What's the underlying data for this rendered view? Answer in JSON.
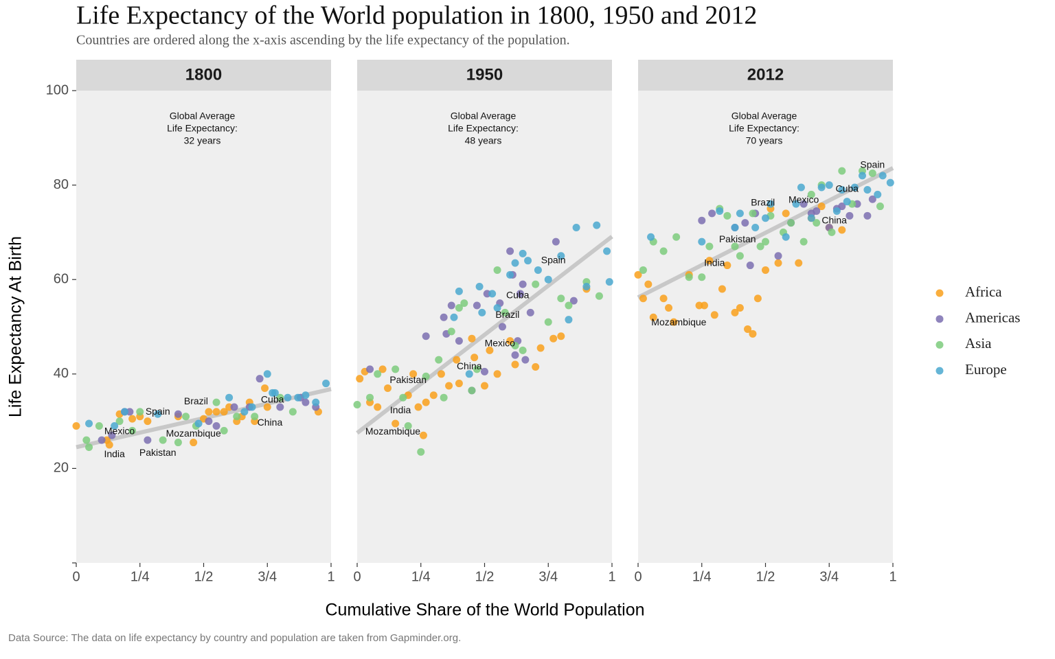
{
  "title": "Life Expectancy of the World population in 1800, 1950 and 2012",
  "subtitle": "Countries are ordered along the x-axis ascending by the life expectancy of the population.",
  "x_label": "Cumulative Share of the World Population",
  "y_label": "Life Expectancy At Birth",
  "caption": "Data Source: The data on life expectancy by country and population are taken from Gapminder.org.",
  "chart_data": [
    {
      "type": "scatter",
      "panel_title": "1800",
      "note": [
        "Global Average",
        "Life Expectancy:",
        "32 years"
      ],
      "xlim": [
        0,
        1
      ],
      "xticks": [
        0,
        {
          "value": 0.25,
          "label": "1/4"
        },
        {
          "value": 0.5,
          "label": "1/2"
        },
        {
          "value": 0.75,
          "label": "3/4"
        },
        1
      ],
      "ylim": [
        0,
        100
      ],
      "yticks": [
        20,
        40,
        60,
        80,
        100
      ],
      "trend": {
        "x": [
          0,
          1
        ],
        "y": [
          24.5,
          36.8
        ]
      },
      "series": [
        {
          "name": "Africa",
          "color": "#f9a01b",
          "x": [
            0.0,
            0.12,
            0.13,
            0.17,
            0.22,
            0.25,
            0.28,
            0.4,
            0.46,
            0.5,
            0.52,
            0.55,
            0.58,
            0.6,
            0.63,
            0.65,
            0.68,
            0.7,
            0.74,
            0.75,
            0.95
          ],
          "values": [
            29,
            26,
            25,
            31.5,
            30.5,
            31,
            30,
            31,
            25.5,
            30.5,
            32,
            32,
            32,
            33,
            30,
            31,
            34,
            30,
            37,
            33,
            32
          ]
        },
        {
          "name": "Americas",
          "color": "#7b6fb0",
          "x": [
            0.1,
            0.14,
            0.19,
            0.21,
            0.28,
            0.4,
            0.52,
            0.55,
            0.62,
            0.68,
            0.72,
            0.8,
            0.88,
            0.9,
            0.94
          ],
          "values": [
            26,
            27,
            32,
            32,
            26,
            31.5,
            30,
            29,
            33,
            33,
            39,
            33,
            35,
            34,
            33
          ]
        },
        {
          "name": "Asia",
          "color": "#7ccb7c",
          "x": [
            0.04,
            0.05,
            0.09,
            0.17,
            0.22,
            0.25,
            0.34,
            0.4,
            0.43,
            0.47,
            0.55,
            0.58,
            0.63,
            0.7,
            0.8,
            0.85
          ],
          "values": [
            26,
            24.5,
            29,
            30,
            28,
            32,
            26,
            25.5,
            31,
            29,
            34,
            28,
            31,
            31,
            35,
            32
          ]
        },
        {
          "name": "Europe",
          "color": "#4aa8cf",
          "x": [
            0.05,
            0.15,
            0.19,
            0.32,
            0.48,
            0.6,
            0.66,
            0.69,
            0.75,
            0.77,
            0.78,
            0.83,
            0.87,
            0.9,
            0.94,
            0.98
          ],
          "values": [
            29.5,
            29,
            32,
            31.5,
            29.5,
            35,
            32,
            33,
            40,
            36,
            36,
            35,
            35,
            35.5,
            34,
            38
          ]
        }
      ],
      "labels": [
        {
          "text": "Mexico",
          "x": 0.17,
          "y": 27.8
        },
        {
          "text": "India",
          "x": 0.15,
          "y": 22.9
        },
        {
          "text": "Pakistan",
          "x": 0.32,
          "y": 23.2
        },
        {
          "text": "Spain",
          "x": 0.32,
          "y": 31.9
        },
        {
          "text": "Brazil",
          "x": 0.47,
          "y": 34.1
        },
        {
          "text": "Mozambique",
          "x": 0.46,
          "y": 27.3
        },
        {
          "text": "Cuba",
          "x": 0.77,
          "y": 34.5
        },
        {
          "text": "China",
          "x": 0.76,
          "y": 29.6
        }
      ]
    },
    {
      "type": "scatter",
      "panel_title": "1950",
      "note": [
        "Global Average",
        "Life Expectancy:",
        "48 years"
      ],
      "xlim": [
        0,
        1
      ],
      "xticks": [
        0,
        {
          "value": 0.25,
          "label": "1/4"
        },
        {
          "value": 0.5,
          "label": "1/2"
        },
        {
          "value": 0.75,
          "label": "3/4"
        },
        1
      ],
      "ylim": [
        0,
        100
      ],
      "yticks": [
        20,
        40,
        60,
        80,
        100
      ],
      "trend": {
        "x": [
          0,
          1
        ],
        "y": [
          27.5,
          69.1
        ]
      },
      "series": [
        {
          "name": "Africa",
          "color": "#f9a01b",
          "x": [
            0.01,
            0.03,
            0.05,
            0.08,
            0.1,
            0.12,
            0.15,
            0.2,
            0.22,
            0.24,
            0.26,
            0.27,
            0.3,
            0.33,
            0.36,
            0.39,
            0.4,
            0.45,
            0.46,
            0.5,
            0.52,
            0.55,
            0.6,
            0.62,
            0.7,
            0.72,
            0.77,
            0.8,
            0.9
          ],
          "values": [
            39,
            40.5,
            34,
            33,
            41,
            37,
            29.5,
            35.5,
            40,
            33,
            27,
            34,
            35.5,
            40,
            37.5,
            43,
            38,
            47.5,
            43.5,
            37.5,
            45,
            40,
            47,
            42,
            41.5,
            45.5,
            47.5,
            48,
            58
          ]
        },
        {
          "name": "Americas",
          "color": "#7b6fb0",
          "x": [
            0.05,
            0.27,
            0.34,
            0.35,
            0.37,
            0.4,
            0.45,
            0.47,
            0.5,
            0.51,
            0.56,
            0.57,
            0.6,
            0.61,
            0.62,
            0.63,
            0.64,
            0.65,
            0.66,
            0.68,
            0.78,
            0.85
          ],
          "values": [
            41,
            48,
            52,
            48.5,
            54.5,
            47,
            36.5,
            54.5,
            40.5,
            57,
            55,
            50,
            66,
            61,
            44,
            47,
            57,
            59,
            43,
            53,
            68,
            55.5
          ]
        },
        {
          "name": "Asia",
          "color": "#7ccb7c",
          "x": [
            0.0,
            0.05,
            0.08,
            0.15,
            0.18,
            0.2,
            0.25,
            0.27,
            0.32,
            0.34,
            0.37,
            0.4,
            0.42,
            0.45,
            0.47,
            0.55,
            0.58,
            0.62,
            0.65,
            0.7,
            0.75,
            0.8,
            0.83,
            0.9,
            0.95
          ],
          "values": [
            33.5,
            35,
            40,
            41,
            35,
            29,
            23.5,
            39.5,
            43,
            35,
            49,
            54,
            55,
            36.5,
            41,
            62,
            53,
            46,
            45,
            59,
            51,
            56,
            54.5,
            59.5,
            56.5
          ]
        },
        {
          "name": "Europe",
          "color": "#4aa8cf",
          "x": [
            0.38,
            0.4,
            0.44,
            0.48,
            0.49,
            0.53,
            0.55,
            0.6,
            0.62,
            0.65,
            0.67,
            0.71,
            0.75,
            0.8,
            0.83,
            0.86,
            0.9,
            0.94,
            0.98,
            0.99
          ],
          "values": [
            52,
            57.5,
            40,
            58.5,
            53,
            57,
            54,
            61,
            63.5,
            65.5,
            64,
            62,
            60,
            65,
            51.5,
            71,
            58.5,
            71.5,
            66,
            59.5
          ]
        }
      ],
      "labels": [
        {
          "text": "Spain",
          "x": 0.77,
          "y": 64
        },
        {
          "text": "Cuba",
          "x": 0.63,
          "y": 56.6
        },
        {
          "text": "Brazil",
          "x": 0.59,
          "y": 52.4
        },
        {
          "text": "Mexico",
          "x": 0.56,
          "y": 46.4
        },
        {
          "text": "China",
          "x": 0.44,
          "y": 41.5
        },
        {
          "text": "Pakistan",
          "x": 0.2,
          "y": 38.6
        },
        {
          "text": "India",
          "x": 0.17,
          "y": 32.2
        },
        {
          "text": "Mozambique",
          "x": 0.14,
          "y": 27.7
        }
      ]
    },
    {
      "type": "scatter",
      "panel_title": "2012",
      "note": [
        "Global Average",
        "Life Expectancy:",
        "70 years"
      ],
      "xlim": [
        0,
        1
      ],
      "xticks": [
        0,
        {
          "value": 0.25,
          "label": "1/4"
        },
        {
          "value": 0.5,
          "label": "1/2"
        },
        {
          "value": 0.75,
          "label": "3/4"
        },
        1
      ],
      "ylim": [
        0,
        100
      ],
      "yticks": [
        20,
        40,
        60,
        80,
        100
      ],
      "trend": {
        "x": [
          0,
          1
        ],
        "y": [
          56.2,
          83.6
        ]
      },
      "series": [
        {
          "name": "Africa",
          "color": "#f9a01b",
          "x": [
            0.0,
            0.02,
            0.04,
            0.06,
            0.1,
            0.12,
            0.14,
            0.2,
            0.24,
            0.26,
            0.28,
            0.3,
            0.33,
            0.35,
            0.38,
            0.4,
            0.43,
            0.45,
            0.47,
            0.5,
            0.52,
            0.55,
            0.58,
            0.63,
            0.68,
            0.72,
            0.75,
            0.8
          ],
          "values": [
            61,
            56,
            59,
            52,
            56,
            54,
            51,
            61,
            54.5,
            54.5,
            64,
            52.5,
            58,
            63,
            53,
            54,
            49.5,
            48.5,
            56,
            62,
            75,
            63.5,
            74,
            63.5,
            73,
            75.5,
            71,
            70.5
          ]
        },
        {
          "name": "Americas",
          "color": "#7b6fb0",
          "x": [
            0.25,
            0.29,
            0.38,
            0.42,
            0.44,
            0.46,
            0.55,
            0.6,
            0.65,
            0.68,
            0.7,
            0.75,
            0.78,
            0.8,
            0.83,
            0.86,
            0.9,
            0.92
          ],
          "values": [
            72.5,
            74,
            71,
            72,
            63,
            74,
            65,
            72,
            76,
            74,
            74.5,
            71,
            75,
            75.5,
            73.5,
            76,
            73.5,
            77
          ]
        },
        {
          "name": "Asia",
          "color": "#7ccb7c",
          "x": [
            0.02,
            0.06,
            0.1,
            0.15,
            0.2,
            0.25,
            0.28,
            0.32,
            0.35,
            0.38,
            0.4,
            0.45,
            0.48,
            0.5,
            0.52,
            0.57,
            0.6,
            0.65,
            0.68,
            0.7,
            0.72,
            0.76,
            0.8,
            0.84,
            0.88,
            0.92,
            0.95
          ],
          "values": [
            62,
            68,
            66,
            69,
            60.5,
            60.5,
            67,
            75,
            73.5,
            67,
            65,
            74,
            67,
            68,
            73.5,
            70,
            72,
            68,
            78,
            72,
            80,
            70,
            83,
            76,
            83,
            82.5,
            75.5
          ]
        },
        {
          "name": "Europe",
          "color": "#4aa8cf",
          "x": [
            0.05,
            0.25,
            0.32,
            0.38,
            0.4,
            0.46,
            0.5,
            0.52,
            0.58,
            0.62,
            0.64,
            0.68,
            0.72,
            0.75,
            0.78,
            0.8,
            0.82,
            0.85,
            0.88,
            0.9,
            0.94,
            0.96,
            0.99
          ],
          "values": [
            69,
            68,
            74.5,
            71,
            74,
            71,
            73,
            76,
            69,
            76,
            79.5,
            73,
            79.5,
            80,
            74.5,
            79,
            76.5,
            79.5,
            82,
            79,
            78,
            82,
            80.5
          ]
        }
      ],
      "labels": [
        {
          "text": "Spain",
          "x": 0.92,
          "y": 84.2
        },
        {
          "text": "Cuba",
          "x": 0.82,
          "y": 79.1
        },
        {
          "text": "Mexico",
          "x": 0.65,
          "y": 76.8
        },
        {
          "text": "Brazil",
          "x": 0.49,
          "y": 76.2
        },
        {
          "text": "China",
          "x": 0.77,
          "y": 72.4
        },
        {
          "text": "Pakistan",
          "x": 0.39,
          "y": 68.4
        },
        {
          "text": "India",
          "x": 0.3,
          "y": 63.4
        },
        {
          "text": "Mozambique",
          "x": 0.16,
          "y": 50.8
        }
      ]
    }
  ]
}
